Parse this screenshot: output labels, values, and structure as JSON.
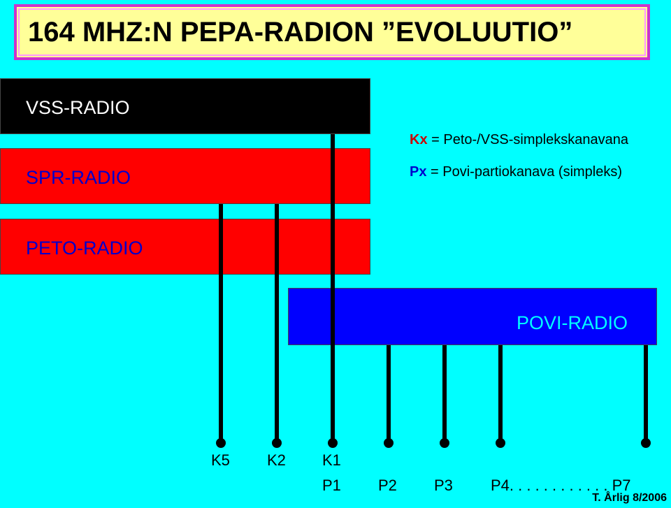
{
  "title": "164 MHZ:N PEPA-RADION ”EVOLUUTIO”",
  "bars": {
    "vss": "VSS-RADIO",
    "spr": "SPR-RADIO",
    "peto": "PETO-RADIO",
    "povi": "POVI-RADIO"
  },
  "legend": {
    "kx_key": "Kx",
    "kx_text": " = Peto-/VSS-simplekskanavana",
    "px_key": "Px",
    "px_text": " = Povi-partiokanava (simpleks)"
  },
  "channels_k": [
    "K5",
    "K2",
    "K1"
  ],
  "channels_p": [
    "P1",
    "P2",
    "P3",
    "P4"
  ],
  "p_ellipsis": "P4. . . . . . . . . . . . P7",
  "footer": "T. Årlig 8/2006",
  "colors": {
    "background": "#00ffff",
    "vss": "#000000",
    "spr": "#ff0000",
    "peto": "#ff0000",
    "povi": "#0000ff"
  }
}
